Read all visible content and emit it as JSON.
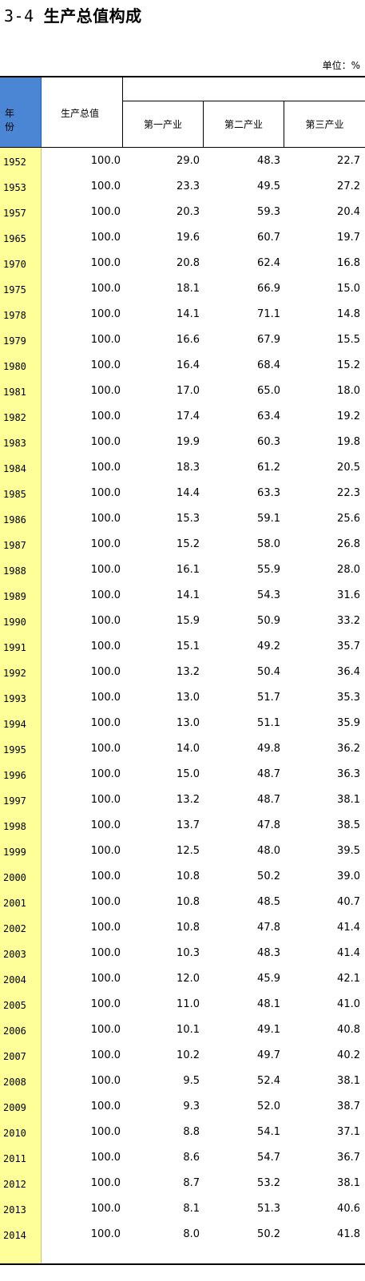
{
  "title": {
    "number": "3-4",
    "text": "生产总值构成"
  },
  "unit": "单位：%",
  "headers": {
    "year": "年 份",
    "total": "生产总值",
    "primary": "第一产业",
    "secondary": "第二产业",
    "tertiary": "第三产业"
  },
  "rows": [
    [
      "1952",
      "100.0",
      "29.0",
      "48.3",
      "22.7"
    ],
    [
      "1953",
      "100.0",
      "23.3",
      "49.5",
      "27.2"
    ],
    [
      "1957",
      "100.0",
      "20.3",
      "59.3",
      "20.4"
    ],
    [
      "1965",
      "100.0",
      "19.6",
      "60.7",
      "19.7"
    ],
    [
      "1970",
      "100.0",
      "20.8",
      "62.4",
      "16.8"
    ],
    [
      "1975",
      "100.0",
      "18.1",
      "66.9",
      "15.0"
    ],
    [
      "1978",
      "100.0",
      "14.1",
      "71.1",
      "14.8"
    ],
    [
      "1979",
      "100.0",
      "16.6",
      "67.9",
      "15.5"
    ],
    [
      "1980",
      "100.0",
      "16.4",
      "68.4",
      "15.2"
    ],
    [
      "1981",
      "100.0",
      "17.0",
      "65.0",
      "18.0"
    ],
    [
      "1982",
      "100.0",
      "17.4",
      "63.4",
      "19.2"
    ],
    [
      "1983",
      "100.0",
      "19.9",
      "60.3",
      "19.8"
    ],
    [
      "1984",
      "100.0",
      "18.3",
      "61.2",
      "20.5"
    ],
    [
      "1985",
      "100.0",
      "14.4",
      "63.3",
      "22.3"
    ],
    [
      "1986",
      "100.0",
      "15.3",
      "59.1",
      "25.6"
    ],
    [
      "1987",
      "100.0",
      "15.2",
      "58.0",
      "26.8"
    ],
    [
      "1988",
      "100.0",
      "16.1",
      "55.9",
      "28.0"
    ],
    [
      "1989",
      "100.0",
      "14.1",
      "54.3",
      "31.6"
    ],
    [
      "1990",
      "100.0",
      "15.9",
      "50.9",
      "33.2"
    ],
    [
      "1991",
      "100.0",
      "15.1",
      "49.2",
      "35.7"
    ],
    [
      "1992",
      "100.0",
      "13.2",
      "50.4",
      "36.4"
    ],
    [
      "1993",
      "100.0",
      "13.0",
      "51.7",
      "35.3"
    ],
    [
      "1994",
      "100.0",
      "13.0",
      "51.1",
      "35.9"
    ],
    [
      "1995",
      "100.0",
      "14.0",
      "49.8",
      "36.2"
    ],
    [
      "1996",
      "100.0",
      "15.0",
      "48.7",
      "36.3"
    ],
    [
      "1997",
      "100.0",
      "13.2",
      "48.7",
      "38.1"
    ],
    [
      "1998",
      "100.0",
      "13.7",
      "47.8",
      "38.5"
    ],
    [
      "1999",
      "100.0",
      "12.5",
      "48.0",
      "39.5"
    ],
    [
      "2000",
      "100.0",
      "10.8",
      "50.2",
      "39.0"
    ],
    [
      "2001",
      "100.0",
      "10.8",
      "48.5",
      "40.7"
    ],
    [
      "2002",
      "100.0",
      "10.8",
      "47.8",
      "41.4"
    ],
    [
      "2003",
      "100.0",
      "10.3",
      "48.3",
      "41.4"
    ],
    [
      "2004",
      "100.0",
      "12.0",
      "45.9",
      "42.1"
    ],
    [
      "2005",
      "100.0",
      "11.0",
      "48.1",
      "41.0"
    ],
    [
      "2006",
      "100.0",
      "10.1",
      "49.1",
      "40.8"
    ],
    [
      "2007",
      "100.0",
      "10.2",
      "49.7",
      "40.2"
    ],
    [
      "2008",
      "100.0",
      "9.5",
      "52.4",
      "38.1"
    ],
    [
      "2009",
      "100.0",
      "9.3",
      "52.0",
      "38.7"
    ],
    [
      "2010",
      "100.0",
      "8.8",
      "54.1",
      "37.1"
    ],
    [
      "2011",
      "100.0",
      "8.6",
      "54.7",
      "36.7"
    ],
    [
      "2012",
      "100.0",
      "8.7",
      "53.2",
      "38.1"
    ],
    [
      "2013",
      "100.0",
      "8.1",
      "51.3",
      "40.6"
    ],
    [
      "2014",
      "100.0",
      "8.0",
      "50.2",
      "41.8"
    ]
  ]
}
